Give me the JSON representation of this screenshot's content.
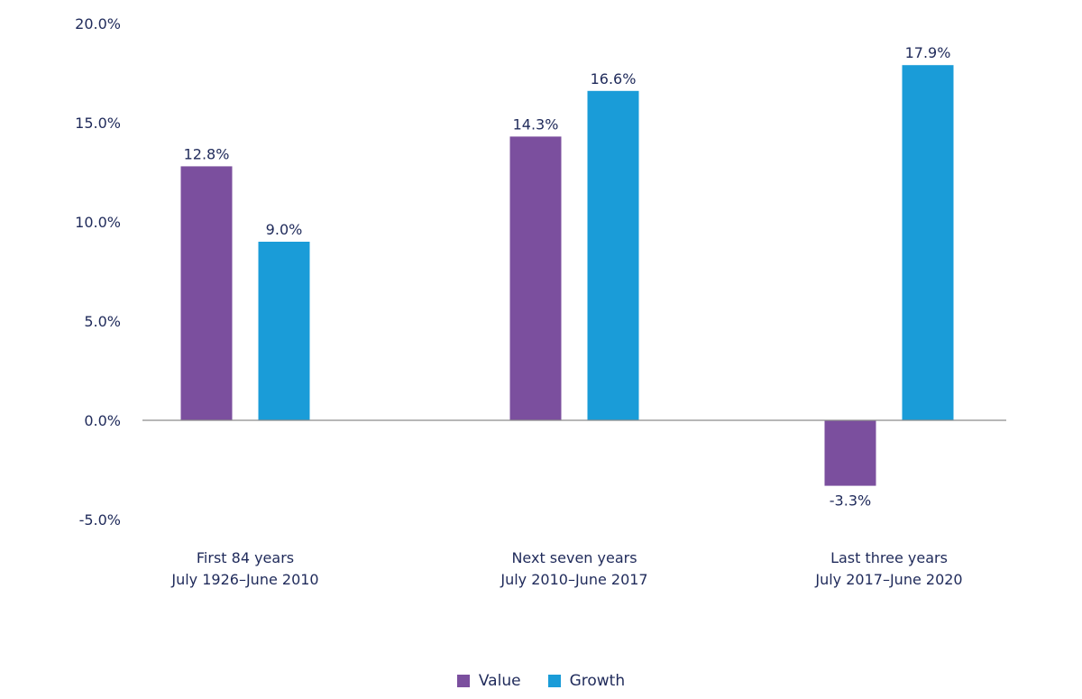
{
  "chart_data": {
    "type": "bar",
    "categories": [
      [
        "First 84 years",
        "July 1926–June 2010"
      ],
      [
        "Next seven years",
        "July 2010–June 2017"
      ],
      [
        "Last three years",
        "July 2017–June 2020"
      ]
    ],
    "series": [
      {
        "name": "Value",
        "values": [
          12.8,
          14.3,
          -3.3
        ],
        "labels": [
          "12.8%",
          "14.3%",
          "-3.3%"
        ],
        "color": "#7b4f9e"
      },
      {
        "name": "Growth",
        "values": [
          9.0,
          16.6,
          17.9
        ],
        "labels": [
          "9.0%",
          "16.6%",
          "17.9%"
        ],
        "color": "#1a9cd8"
      }
    ],
    "yticks": [
      20,
      15,
      10,
      5,
      0,
      -5
    ],
    "ytick_labels": [
      "20.0%",
      "15.0%",
      "10.0%",
      "5.0%",
      "0.0%",
      "-5.0%"
    ],
    "ylim": [
      -5,
      20
    ],
    "grid": false,
    "legend_position": "bottom-center",
    "title": "",
    "xlabel": "",
    "ylabel": ""
  }
}
